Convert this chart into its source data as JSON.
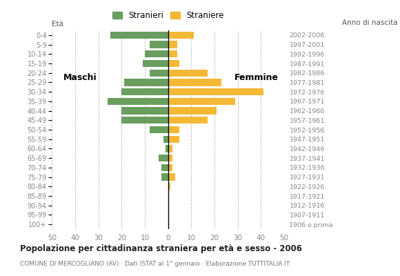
{
  "age_groups": [
    "100+",
    "95-99",
    "90-94",
    "85-89",
    "80-84",
    "75-79",
    "70-74",
    "65-69",
    "60-64",
    "55-59",
    "50-54",
    "45-49",
    "40-44",
    "35-39",
    "30-34",
    "25-29",
    "20-24",
    "15-19",
    "10-14",
    "5-9",
    "0-4"
  ],
  "birth_years": [
    "1906 o prima",
    "1907-1911",
    "1912-1916",
    "1917-1921",
    "1922-1926",
    "1927-1931",
    "1932-1936",
    "1937-1941",
    "1942-1946",
    "1947-1951",
    "1952-1956",
    "1957-1961",
    "1962-1966",
    "1967-1971",
    "1972-1976",
    "1977-1981",
    "1982-1986",
    "1987-1991",
    "1992-1996",
    "1997-2001",
    "2002-2006"
  ],
  "males": [
    0,
    0,
    0,
    0,
    0,
    3,
    3,
    4,
    1,
    2,
    8,
    20,
    20,
    26,
    20,
    19,
    8,
    11,
    10,
    8,
    25
  ],
  "females": [
    0,
    0,
    0,
    0,
    1,
    3,
    2,
    2,
    2,
    5,
    5,
    17,
    21,
    29,
    41,
    23,
    17,
    5,
    4,
    4,
    11
  ],
  "male_color": "#6a9e5f",
  "female_color": "#f5b835",
  "background_color": "#ffffff",
  "grid_color": "#bbbbbb",
  "title": "Popolazione per cittadinanza straniera per età e sesso - 2006",
  "subtitle": "COMUNE DI MERCOGLIANO (AV) · Dati ISTAT al 1° gennaio · Elaborazione TUTTITALIA.IT",
  "legend_male": "Stranieri",
  "legend_female": "Straniere",
  "label_eta": "Età",
  "label_anno": "Anno di nascita",
  "label_maschi": "Maschi",
  "label_femmine": "Femmine",
  "xlim": 50
}
